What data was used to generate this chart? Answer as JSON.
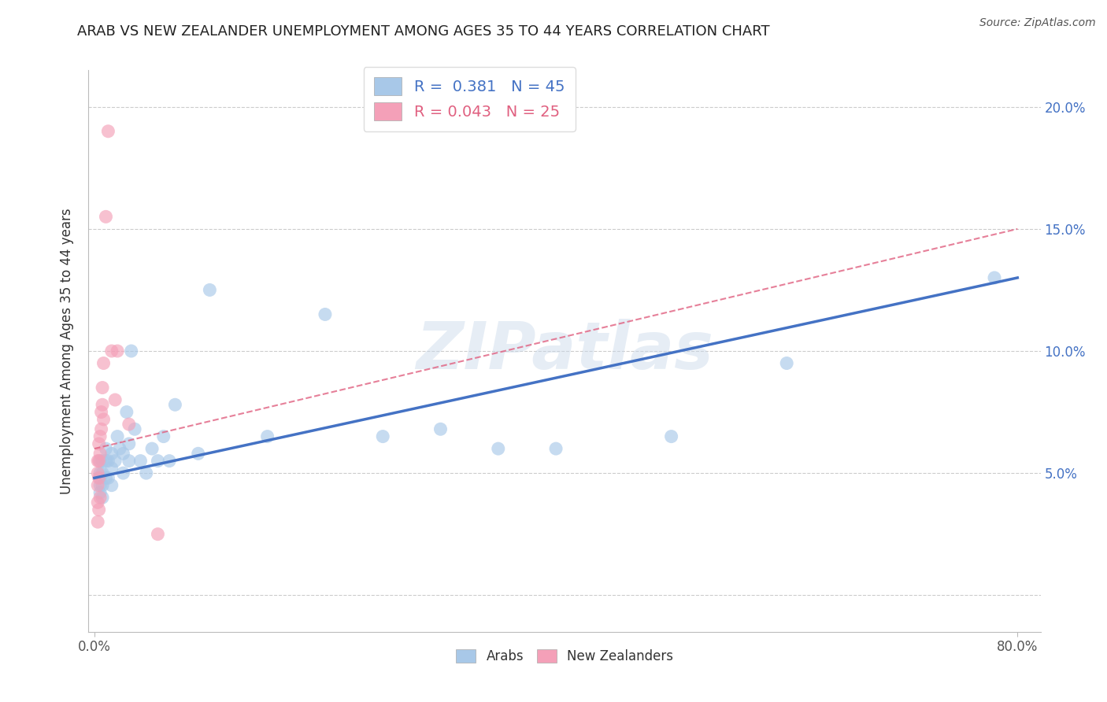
{
  "title": "ARAB VS NEW ZEALANDER UNEMPLOYMENT AMONG AGES 35 TO 44 YEARS CORRELATION CHART",
  "source": "Source: ZipAtlas.com",
  "ylabel": "Unemployment Among Ages 35 to 44 years",
  "watermark": "ZIPatlas",
  "arab_R": 0.381,
  "arab_N": 45,
  "nz_R": 0.043,
  "nz_N": 25,
  "arab_color": "#A8C8E8",
  "nz_color": "#F4A0B8",
  "arab_line_color": "#4472C4",
  "nz_line_color": "#E06080",
  "grid_color": "#CCCCCC",
  "background_color": "#FFFFFF",
  "xlim": [
    -0.005,
    0.82
  ],
  "ylim": [
    -0.015,
    0.215
  ],
  "yticks": [
    0.0,
    0.05,
    0.1,
    0.15,
    0.2
  ],
  "yticklabels_right": [
    "",
    "5.0%",
    "10.0%",
    "15.0%",
    "20.0%"
  ],
  "arab_x": [
    0.005,
    0.005,
    0.005,
    0.005,
    0.005,
    0.007,
    0.007,
    0.007,
    0.007,
    0.01,
    0.01,
    0.01,
    0.012,
    0.012,
    0.015,
    0.015,
    0.015,
    0.018,
    0.02,
    0.022,
    0.025,
    0.025,
    0.028,
    0.03,
    0.03,
    0.032,
    0.035,
    0.04,
    0.045,
    0.05,
    0.055,
    0.06,
    0.065,
    0.07,
    0.09,
    0.1,
    0.15,
    0.2,
    0.25,
    0.3,
    0.35,
    0.4,
    0.5,
    0.6,
    0.78
  ],
  "arab_y": [
    0.055,
    0.05,
    0.048,
    0.045,
    0.042,
    0.055,
    0.05,
    0.045,
    0.04,
    0.06,
    0.055,
    0.048,
    0.055,
    0.048,
    0.058,
    0.052,
    0.045,
    0.055,
    0.065,
    0.06,
    0.058,
    0.05,
    0.075,
    0.062,
    0.055,
    0.1,
    0.068,
    0.055,
    0.05,
    0.06,
    0.055,
    0.065,
    0.055,
    0.078,
    0.058,
    0.125,
    0.065,
    0.115,
    0.065,
    0.068,
    0.06,
    0.06,
    0.065,
    0.095,
    0.13
  ],
  "nz_x": [
    0.003,
    0.003,
    0.003,
    0.003,
    0.003,
    0.004,
    0.004,
    0.004,
    0.004,
    0.005,
    0.005,
    0.005,
    0.006,
    0.006,
    0.007,
    0.007,
    0.008,
    0.008,
    0.01,
    0.012,
    0.015,
    0.018,
    0.02,
    0.03,
    0.055
  ],
  "nz_y": [
    0.055,
    0.05,
    0.045,
    0.038,
    0.03,
    0.062,
    0.055,
    0.048,
    0.035,
    0.065,
    0.058,
    0.04,
    0.075,
    0.068,
    0.085,
    0.078,
    0.095,
    0.072,
    0.155,
    0.19,
    0.1,
    0.08,
    0.1,
    0.07,
    0.025
  ],
  "arab_trendline_x": [
    0.0,
    0.8
  ],
  "arab_trendline_y": [
    0.048,
    0.13
  ],
  "nz_trendline_x": [
    0.0,
    0.8
  ],
  "nz_trendline_y": [
    0.06,
    0.15
  ]
}
